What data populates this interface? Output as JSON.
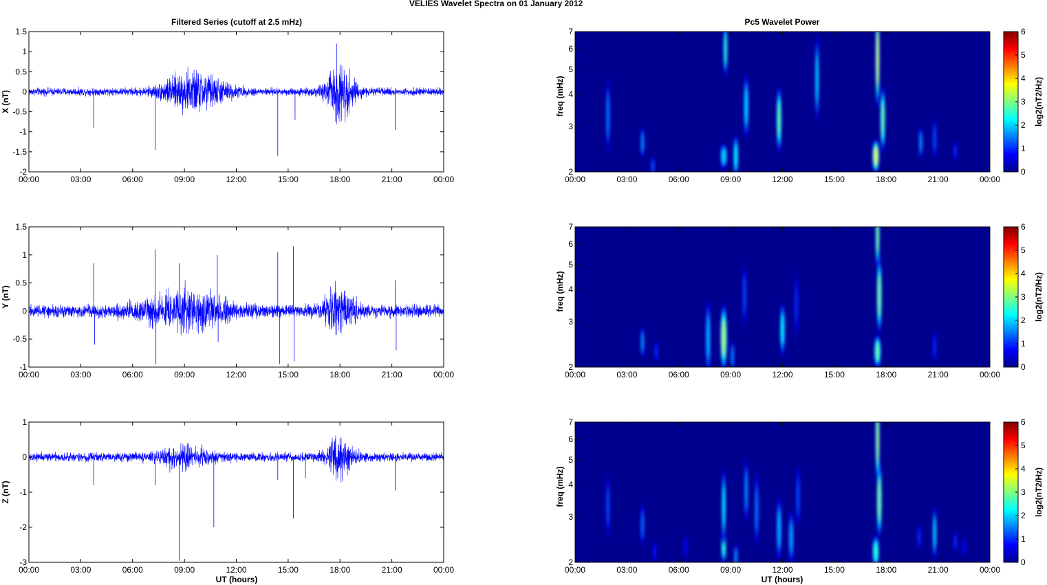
{
  "figure": {
    "suptitle": "VELIES Wavelet Spectra on 01 January   2012",
    "left_title": "Filtered Series (cutoff at 2.5 mHz)",
    "right_title": "Pc5 Wavelet Power",
    "xlabel": "UT (hours)",
    "colorbar_label": "log2(nT2/Hz)"
  },
  "colors": {
    "trace": "#0000ff",
    "spectrogram_background": "#00008f"
  },
  "time_ticks": [
    "00:00",
    "03:00",
    "06:00",
    "09:00",
    "12:00",
    "15:00",
    "18:00",
    "21:00",
    "00:00"
  ],
  "chart_data": [
    {
      "type": "line",
      "component": "X",
      "ylabel": "X (nT)",
      "xlim": [
        0,
        24
      ],
      "ylim": [
        -2,
        1.5
      ],
      "yticks": [
        1.5,
        1,
        0.5,
        0,
        -0.5,
        -1,
        -1.5,
        -2
      ],
      "noise_amplitude": 0.07,
      "bursts": [
        [
          9,
          0.22,
          1.5
        ],
        [
          10.3,
          0.18,
          1.5
        ],
        [
          18,
          0.5,
          0.8
        ]
      ],
      "spikes": [
        [
          3.75,
          -0.9
        ],
        [
          7.3,
          -1.45
        ],
        [
          8.7,
          0.4
        ],
        [
          14.4,
          -1.6
        ],
        [
          15.4,
          -0.7
        ],
        [
          17.8,
          1.2
        ],
        [
          17.95,
          -0.55
        ],
        [
          21.2,
          -0.95
        ]
      ]
    },
    {
      "type": "heatmap",
      "component": "X",
      "ylabel": "freq (mHz)",
      "xlim": [
        0,
        24
      ],
      "ylim": [
        2,
        7
      ],
      "yscale": "log",
      "yticks": [
        2,
        3,
        4,
        5,
        6,
        7
      ],
      "clim": [
        0,
        6
      ],
      "cticks": [
        0,
        1,
        2,
        3,
        4,
        5,
        6
      ],
      "features": [
        [
          1.9,
          3.3,
          0.08,
          0.35,
          1.5
        ],
        [
          3.9,
          2.6,
          0.12,
          0.15,
          1.6
        ],
        [
          4.5,
          2.1,
          0.1,
          0.1,
          1.2
        ],
        [
          8.6,
          2.3,
          0.2,
          0.12,
          2.0
        ],
        [
          9.3,
          2.3,
          0.15,
          0.2,
          2.2
        ],
        [
          8.7,
          6.0,
          0.12,
          0.25,
          2.5
        ],
        [
          9.9,
          3.6,
          0.15,
          0.3,
          2.0
        ],
        [
          11.8,
          3.2,
          0.15,
          0.3,
          2.8
        ],
        [
          14.0,
          4.6,
          0.08,
          0.4,
          2.0
        ],
        [
          17.4,
          2.3,
          0.2,
          0.15,
          3.5
        ],
        [
          17.5,
          5.5,
          0.1,
          0.45,
          3.5
        ],
        [
          17.8,
          3.2,
          0.15,
          0.3,
          2.8
        ],
        [
          20.0,
          2.6,
          0.12,
          0.15,
          1.6
        ],
        [
          20.8,
          2.7,
          0.1,
          0.2,
          1.2
        ],
        [
          22.0,
          2.4,
          0.1,
          0.1,
          1.0
        ]
      ]
    },
    {
      "type": "line",
      "component": "Y",
      "ylabel": "Y (nT)",
      "xlim": [
        0,
        24
      ],
      "ylim": [
        -1,
        1.5
      ],
      "yticks": [
        1.5,
        1,
        0.5,
        0,
        -0.5,
        -1
      ],
      "noise_amplitude": 0.08,
      "bursts": [
        [
          9,
          0.22,
          2.5
        ],
        [
          18,
          0.3,
          0.8
        ]
      ],
      "spikes": [
        [
          3.75,
          0.85
        ],
        [
          3.8,
          -0.6
        ],
        [
          7.3,
          1.1
        ],
        [
          7.35,
          -0.95
        ],
        [
          8.7,
          0.85
        ],
        [
          10.9,
          1.0
        ],
        [
          10.95,
          -0.55
        ],
        [
          14.4,
          1.05
        ],
        [
          14.5,
          -0.95
        ],
        [
          15.3,
          1.15
        ],
        [
          15.35,
          -0.9
        ],
        [
          21.2,
          0.55
        ],
        [
          21.25,
          -0.7
        ]
      ]
    },
    {
      "type": "heatmap",
      "component": "Y",
      "ylabel": "freq (mHz)",
      "xlim": [
        0,
        24
      ],
      "ylim": [
        2,
        7
      ],
      "yscale": "log",
      "yticks": [
        2,
        3,
        4,
        5,
        6,
        7
      ],
      "clim": [
        0,
        6
      ],
      "cticks": [
        0,
        1,
        2,
        3,
        4,
        5,
        6
      ],
      "features": [
        [
          3.9,
          2.5,
          0.12,
          0.15,
          1.6
        ],
        [
          4.7,
          2.3,
          0.1,
          0.1,
          1.0
        ],
        [
          7.7,
          2.6,
          0.15,
          0.35,
          1.8
        ],
        [
          8.6,
          2.6,
          0.2,
          0.3,
          3.2
        ],
        [
          9.1,
          2.2,
          0.12,
          0.15,
          1.5
        ],
        [
          9.8,
          3.8,
          0.08,
          0.3,
          1.2
        ],
        [
          12.0,
          2.8,
          0.15,
          0.25,
          2.2
        ],
        [
          12.8,
          3.5,
          0.08,
          0.3,
          1.0
        ],
        [
          17.5,
          2.3,
          0.2,
          0.15,
          2.8
        ],
        [
          17.6,
          3.8,
          0.15,
          0.35,
          3.0
        ],
        [
          17.5,
          6.5,
          0.08,
          0.3,
          3.0
        ],
        [
          20.8,
          2.4,
          0.1,
          0.15,
          1.0
        ]
      ]
    },
    {
      "type": "line",
      "component": "Z",
      "ylabel": "Z (nT)",
      "xlim": [
        0,
        24
      ],
      "ylim": [
        -3,
        1
      ],
      "yticks": [
        1,
        0,
        -1,
        -2,
        -3
      ],
      "noise_amplitude": 0.09,
      "bursts": [
        [
          9,
          0.2,
          1.5
        ],
        [
          18,
          0.35,
          0.8
        ]
      ],
      "spikes": [
        [
          3.75,
          -0.8
        ],
        [
          7.3,
          -0.8
        ],
        [
          8.7,
          -2.95
        ],
        [
          10.7,
          -2.0
        ],
        [
          14.4,
          -0.65
        ],
        [
          15.3,
          -1.75
        ],
        [
          16,
          -0.6
        ],
        [
          21.2,
          -0.95
        ]
      ]
    },
    {
      "type": "heatmap",
      "component": "Z",
      "ylabel": "freq (mHz)",
      "xlim": [
        0,
        24
      ],
      "ylim": [
        2,
        7
      ],
      "yscale": "log",
      "yticks": [
        2,
        3,
        4,
        5,
        6,
        7
      ],
      "clim": [
        0,
        6
      ],
      "cticks": [
        0,
        1,
        2,
        3,
        4,
        5,
        6
      ],
      "features": [
        [
          1.9,
          3.3,
          0.08,
          0.3,
          1.2
        ],
        [
          3.9,
          2.8,
          0.1,
          0.2,
          1.4
        ],
        [
          4.6,
          2.2,
          0.08,
          0.1,
          0.9
        ],
        [
          6.4,
          2.3,
          0.08,
          0.12,
          0.8
        ],
        [
          8.6,
          2.3,
          0.15,
          0.15,
          2.5
        ],
        [
          8.6,
          3.3,
          0.1,
          0.35,
          2.2
        ],
        [
          9.3,
          2.1,
          0.12,
          0.12,
          1.6
        ],
        [
          9.9,
          3.8,
          0.1,
          0.3,
          1.6
        ],
        [
          10.5,
          3.2,
          0.1,
          0.35,
          1.5
        ],
        [
          11.8,
          2.7,
          0.15,
          0.3,
          1.8
        ],
        [
          12.5,
          2.5,
          0.15,
          0.25,
          1.7
        ],
        [
          12.9,
          3.6,
          0.1,
          0.3,
          1.2
        ],
        [
          17.4,
          2.2,
          0.2,
          0.15,
          2.5
        ],
        [
          17.6,
          3.5,
          0.15,
          0.35,
          3.0
        ],
        [
          17.5,
          6.0,
          0.08,
          0.4,
          3.2
        ],
        [
          19.9,
          2.5,
          0.1,
          0.12,
          1.0
        ],
        [
          20.8,
          2.6,
          0.12,
          0.25,
          2.0
        ],
        [
          22.0,
          2.4,
          0.1,
          0.1,
          1.0
        ],
        [
          22.5,
          2.3,
          0.1,
          0.1,
          0.8
        ]
      ]
    }
  ]
}
